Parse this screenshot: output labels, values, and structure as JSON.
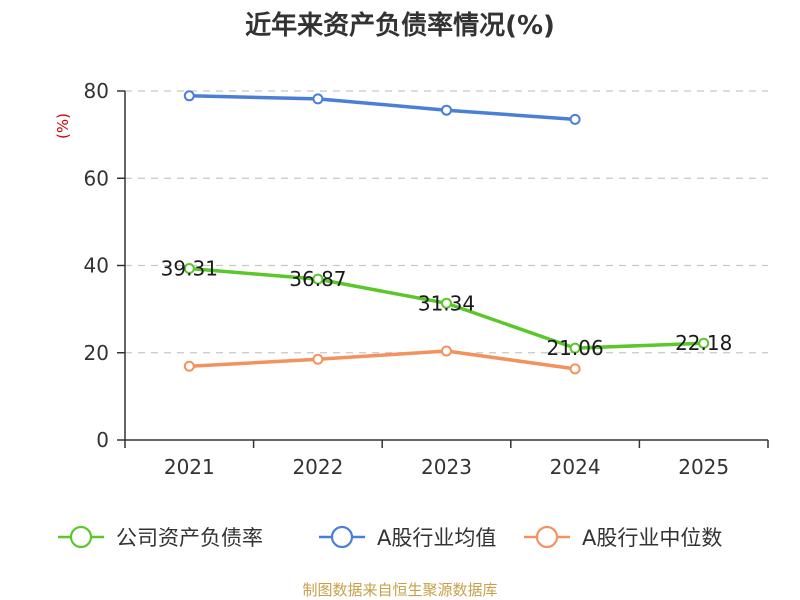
{
  "chart_data": {
    "type": "line",
    "title": "近年来资产负债率情况(%)",
    "ylabel": "(%)",
    "categories": [
      "2021",
      "2022",
      "2023",
      "2024",
      "2025"
    ],
    "ylim": [
      0,
      80
    ],
    "yticks": [
      0,
      20,
      40,
      60,
      80
    ],
    "grid": true,
    "legend_position": "bottom",
    "series": [
      {
        "name": "公司资产负债率",
        "color": "#5cc72b",
        "values": [
          39.31,
          36.87,
          31.34,
          21.06,
          22.18
        ],
        "labels": [
          "39.31",
          "36.87",
          "31.34",
          "21.06",
          "22.18"
        ]
      },
      {
        "name": "A股行业均值",
        "color": "#4a7fd8",
        "values": [
          78.9,
          78.2,
          75.6,
          73.5,
          null
        ]
      },
      {
        "name": "A股行业中位数",
        "color": "#f4925e",
        "values": [
          16.9,
          18.5,
          20.4,
          16.3,
          null
        ]
      }
    ]
  },
  "source": "制图数据来自恒生聚源数据库"
}
